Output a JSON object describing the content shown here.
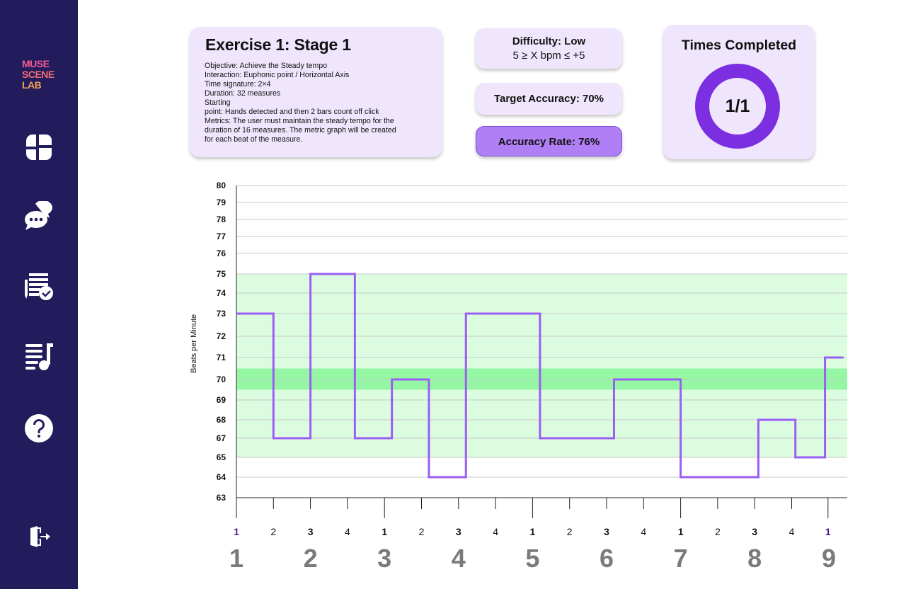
{
  "sidebar": {
    "logo": [
      "MUSE",
      "SCENE",
      "LAB"
    ],
    "items": [
      {
        "icon": "dashboard-icon"
      },
      {
        "icon": "chat-icon"
      },
      {
        "icon": "assignment-check-icon"
      },
      {
        "icon": "music-list-icon"
      },
      {
        "icon": "help-icon"
      },
      {
        "icon": "logout-icon"
      }
    ]
  },
  "exercise": {
    "title": "Exercise 1: Stage 1",
    "lines": [
      "Objective: Achieve the Steady tempo",
      "Interaction: Euphonic point / Horizontal Axis",
      "Time signature: 2×4",
      "Duration: 32 measures",
      "Starting",
      "point:  Hands detected and then 2 bars count off click",
      "Metrics: The user must maintain the steady tempo for the",
      "duration of 16 measures. The metric graph will be created",
      "for each beat of the measure."
    ]
  },
  "difficulty": {
    "label": "Difficulty: Low",
    "range": "5 ≥ X bpm ≤ +5"
  },
  "target_accuracy": "Target Accuracy: 70%",
  "accuracy_rate": "Accuracy Rate: 76%",
  "times_completed": {
    "title": "Times Completed",
    "value": "1/1",
    "completed": 1,
    "total": 1
  },
  "colors": {
    "accent": "#7b2fe0",
    "line": "#9b5ef5",
    "band": "#dcfce0",
    "target_band": "#95f7a3",
    "sidebar": "#231c5c",
    "card": "#efe6fd"
  },
  "chart_data": {
    "type": "line",
    "step": true,
    "ylabel": "Beats per Minute",
    "y_ticks": [
      63,
      64,
      65,
      67,
      68,
      69,
      70,
      71,
      72,
      73,
      74,
      75,
      76,
      77,
      78,
      79,
      80
    ],
    "tolerance_band": [
      65,
      75
    ],
    "target_band": [
      69.5,
      70.5
    ],
    "beats": [
      "1",
      "2",
      "3",
      "4",
      "1",
      "2",
      "3",
      "4",
      "1",
      "2",
      "3",
      "4",
      "1",
      "2",
      "3",
      "4",
      "1"
    ],
    "measures": [
      "1",
      "2",
      "3",
      "4",
      "5",
      "6",
      "7",
      "8",
      "9"
    ],
    "segments": [
      {
        "x": [
          0,
          0.5
        ],
        "y": 73
      },
      {
        "x": [
          0.5,
          1.0
        ],
        "y": 67
      },
      {
        "x": [
          1.0,
          1.6
        ],
        "y": 75
      },
      {
        "x": [
          1.6,
          2.1
        ],
        "y": 67
      },
      {
        "x": [
          2.1,
          2.6
        ],
        "y": 70
      },
      {
        "x": [
          2.6,
          3.1
        ],
        "y": 64
      },
      {
        "x": [
          3.1,
          4.1
        ],
        "y": 73
      },
      {
        "x": [
          4.1,
          5.1
        ],
        "y": 67
      },
      {
        "x": [
          5.1,
          6.0
        ],
        "y": 70
      },
      {
        "x": [
          6.0,
          7.05
        ],
        "y": 64
      },
      {
        "x": [
          7.05,
          7.55
        ],
        "y": 68
      },
      {
        "x": [
          7.55,
          7.95
        ],
        "y": 65
      },
      {
        "x": [
          7.95,
          8.2
        ],
        "y": 71
      }
    ]
  }
}
